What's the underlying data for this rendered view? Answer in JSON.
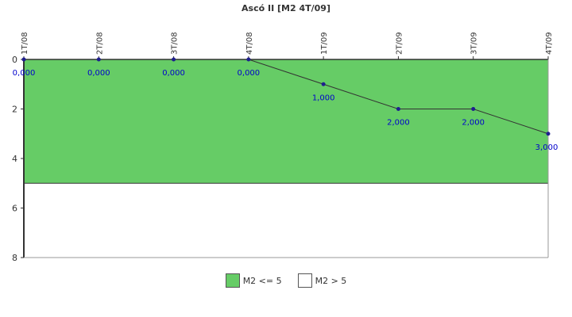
{
  "chart_data": {
    "type": "line",
    "title": "Ascó II [M2 4T/09]",
    "categories": [
      "1T/08",
      "2T/08",
      "3T/08",
      "4T/08",
      "1T/09",
      "2T/09",
      "3T/09",
      "4T/09"
    ],
    "series": [
      {
        "values": [
          0,
          0,
          0,
          0,
          1,
          2,
          2,
          3
        ],
        "labels": [
          "0,000",
          "0,000",
          "0,000",
          "0,000",
          "1,000",
          "2,000",
          "2,000",
          "3,000"
        ],
        "color": "#1f1f8f",
        "label_color": "#0000cc"
      }
    ],
    "ylim": [
      0,
      8
    ],
    "y_inverted": true,
    "y_ticks": [
      0,
      2,
      4,
      6,
      8
    ],
    "x_axis_position": "top",
    "bands": [
      {
        "name": "M2 <= 5",
        "from": 0,
        "to": 5,
        "color": "#66cc66"
      },
      {
        "name": "M2 > 5",
        "from": 5,
        "to": 8,
        "color": "#ffffff"
      }
    ],
    "grid": false,
    "legend_placement": "bottom"
  }
}
